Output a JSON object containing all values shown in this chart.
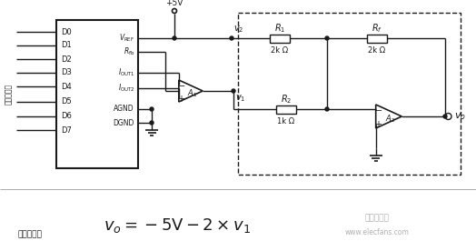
{
  "bg_color": "#ffffff",
  "line_color": "#1a1a1a",
  "fig_width": 5.24,
  "fig_height": 2.76,
  "dpi": 100,
  "d_labels": [
    "D0",
    "D1",
    "D2",
    "D3",
    "D4",
    "D5",
    "D6",
    "D7"
  ],
  "formula": "$v_o = -5\\mathrm{V} - 2 \\times v_1$",
  "output_label": "输出电压：",
  "input_label": "输入数字量",
  "plus5v_label": "+5V",
  "v2_label": "$v_2$",
  "v1_label": "$v_1$",
  "vo_label": "$v_o$",
  "R1_label": "$R_1$",
  "Rf_label": "$R_f$",
  "R2_label": "$R_2$",
  "R1_val": "2k Ω",
  "Rf_val": "2k Ω",
  "R2_val": "1k Ω",
  "A1_label": "$A_1$",
  "A2_label": "$A_2$",
  "Vref_label": "$V_{\\\\mathrm{REF}}$",
  "Rfb_label": "$R_{\\\\mathrm{fb}}$",
  "Iout1_label": "$I_{\\\\mathrm{OUT1}}$",
  "Iout2_label": "$I_{\\\\mathrm{OUT2}}$",
  "AGND_label": "AGND",
  "DGND_label": "DGND",
  "watermark1": "电子发烧友",
  "watermark2": "www.elecfans.com"
}
